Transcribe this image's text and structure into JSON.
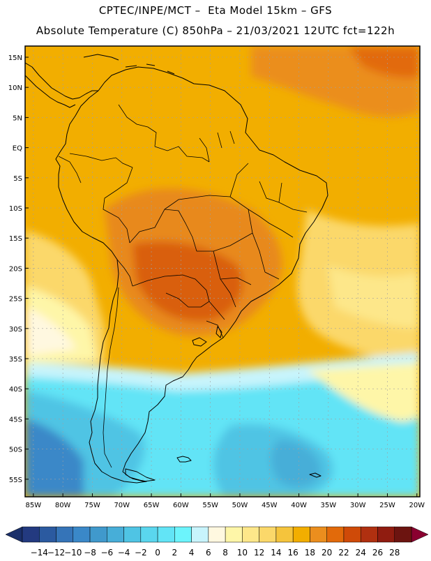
{
  "header": {
    "line1": "CPTEC/INPE/MCT –  Eta Model 15km – GFS",
    "line2": "Absolute Temperature (C) 850hPa – 21/03/2021 12UTC fct=122h"
  },
  "axes": {
    "lat_labels": [
      "15N",
      "10N",
      "5N",
      "EQ",
      "5S",
      "10S",
      "15S",
      "20S",
      "25S",
      "30S",
      "35S",
      "40S",
      "45S",
      "50S",
      "55S"
    ],
    "lat_values": [
      15,
      10,
      5,
      0,
      -5,
      -10,
      -15,
      -20,
      -25,
      -30,
      -35,
      -40,
      -45,
      -50,
      -55
    ],
    "lon_labels": [
      "85W",
      "80W",
      "75W",
      "70W",
      "65W",
      "60W",
      "55W",
      "50W",
      "45W",
      "40W",
      "35W",
      "30W",
      "25W",
      "20W"
    ],
    "lon_values": [
      -85,
      -80,
      -75,
      -70,
      -65,
      -60,
      -55,
      -50,
      -45,
      -40,
      -35,
      -30,
      -25,
      -20
    ],
    "lon_range": [
      -86,
      -20
    ],
    "lat_range": [
      -58,
      17
    ]
  },
  "colorbar": {
    "labels": [
      "-14",
      "-12",
      "-10",
      "-8",
      "-6",
      "-4",
      "-2",
      "0",
      "2",
      "4",
      "6",
      "8",
      "10",
      "12",
      "14",
      "16",
      "18",
      "20",
      "22",
      "24",
      "26",
      "28"
    ],
    "colors": [
      "#233a80",
      "#2b5aa0",
      "#3574b8",
      "#3a88c8",
      "#4099cc",
      "#47aed8",
      "#4fc4e4",
      "#5ad6ee",
      "#62e4f6",
      "#6cf4fc",
      "#c8f4fc",
      "#fff8e0",
      "#fef6a8",
      "#fde78a",
      "#fbd86a",
      "#f5c43c",
      "#f2ae00",
      "#eb8e1e",
      "#e26a0a",
      "#cf4a08",
      "#b03010",
      "#901c10",
      "#6c1410"
    ],
    "left_arrow_color": "#1a2f6a",
    "right_arrow_color": "#8a0030"
  },
  "map": {
    "ocean_far_color": "#f2ae00",
    "land_main_color": "#eb9a12",
    "hot_core_color": "#d95f0c",
    "cold_ocean_color": "#62e4f6",
    "coast_color": "#000000",
    "grid_color": "#b0b0b0"
  }
}
